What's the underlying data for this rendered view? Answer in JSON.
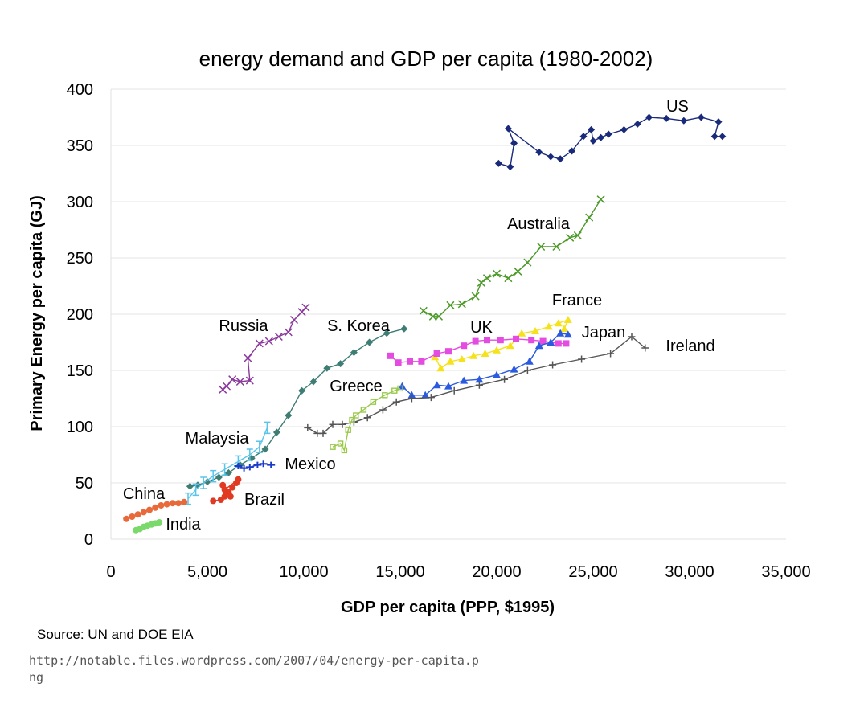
{
  "chart_data": {
    "type": "scatter",
    "title": "energy demand and GDP per capita (1980-2002)",
    "xlabel": "GDP per capita (PPP, $1995)",
    "ylabel": "Primary Energy per capita (GJ)",
    "xlim": [
      0,
      35000
    ],
    "ylim": [
      0,
      400
    ],
    "xticks": [
      "0",
      "5,000",
      "10,000",
      "15,000",
      "20,000",
      "25,000",
      "30,000",
      "35,000"
    ],
    "yticks": [
      "0",
      "50",
      "100",
      "150",
      "200",
      "250",
      "300",
      "350",
      "400"
    ],
    "grid": "horizontal",
    "legend": "none",
    "series": [
      {
        "name": "US",
        "color": "#1a2a7a",
        "marker": "diamond",
        "points": [
          [
            20100,
            334
          ],
          [
            20700,
            331
          ],
          [
            20900,
            352
          ],
          [
            20600,
            365
          ],
          [
            22200,
            344
          ],
          [
            22800,
            340
          ],
          [
            23300,
            338
          ],
          [
            23900,
            345
          ],
          [
            24500,
            358
          ],
          [
            24900,
            364
          ],
          [
            25000,
            354
          ],
          [
            25400,
            357
          ],
          [
            25800,
            360
          ],
          [
            26600,
            364
          ],
          [
            27300,
            369
          ],
          [
            27900,
            375
          ],
          [
            28800,
            374
          ],
          [
            29700,
            372
          ],
          [
            30600,
            375
          ],
          [
            31500,
            371
          ],
          [
            31300,
            358
          ],
          [
            31700,
            358
          ]
        ]
      },
      {
        "name": "Australia",
        "color": "#4d9a2a",
        "marker": "x",
        "points": [
          [
            16200,
            203
          ],
          [
            16700,
            198
          ],
          [
            17000,
            198
          ],
          [
            17600,
            208
          ],
          [
            18200,
            209
          ],
          [
            18900,
            216
          ],
          [
            19200,
            228
          ],
          [
            19500,
            232
          ],
          [
            20000,
            236
          ],
          [
            20600,
            232
          ],
          [
            21100,
            238
          ],
          [
            21600,
            246
          ],
          [
            22300,
            260
          ],
          [
            23100,
            260
          ],
          [
            23800,
            268
          ],
          [
            24200,
            270
          ],
          [
            24800,
            286
          ],
          [
            25400,
            302
          ]
        ]
      },
      {
        "name": "France",
        "color": "#f5e21a",
        "marker": "triangle",
        "points": [
          [
            16800,
            162
          ],
          [
            17100,
            152
          ],
          [
            17600,
            158
          ],
          [
            18200,
            160
          ],
          [
            18800,
            163
          ],
          [
            19400,
            165
          ],
          [
            20000,
            168
          ],
          [
            20700,
            172
          ],
          [
            21300,
            183
          ],
          [
            22000,
            185
          ],
          [
            22700,
            189
          ],
          [
            23200,
            192
          ],
          [
            23700,
            195
          ],
          [
            23500,
            187
          ]
        ]
      },
      {
        "name": "UK",
        "color": "#e44be0",
        "marker": "square",
        "points": [
          [
            14500,
            163
          ],
          [
            14900,
            157
          ],
          [
            15500,
            158
          ],
          [
            16100,
            158
          ],
          [
            16900,
            165
          ],
          [
            17500,
            167
          ],
          [
            18300,
            172
          ],
          [
            18900,
            176
          ],
          [
            19500,
            177
          ],
          [
            20200,
            177
          ],
          [
            21000,
            178
          ],
          [
            21800,
            177
          ],
          [
            22400,
            176
          ],
          [
            23200,
            174
          ],
          [
            23600,
            174
          ]
        ]
      },
      {
        "name": "Japan",
        "color": "#2a5ae0",
        "marker": "triangle",
        "points": [
          [
            15100,
            136
          ],
          [
            15600,
            128
          ],
          [
            16300,
            128
          ],
          [
            16900,
            137
          ],
          [
            17500,
            136
          ],
          [
            18300,
            141
          ],
          [
            19100,
            142
          ],
          [
            20000,
            146
          ],
          [
            20900,
            151
          ],
          [
            21700,
            158
          ],
          [
            22200,
            172
          ],
          [
            22800,
            175
          ],
          [
            23300,
            183
          ],
          [
            23700,
            182
          ]
        ]
      },
      {
        "name": "Ireland",
        "color": "#555555",
        "marker": "plus",
        "points": [
          [
            10200,
            99
          ],
          [
            10700,
            94
          ],
          [
            11000,
            94
          ],
          [
            11500,
            102
          ],
          [
            12000,
            102
          ],
          [
            12600,
            104
          ],
          [
            13300,
            108
          ],
          [
            14100,
            115
          ],
          [
            14800,
            122
          ],
          [
            15600,
            125
          ],
          [
            16600,
            126
          ],
          [
            17800,
            132
          ],
          [
            19100,
            137
          ],
          [
            20400,
            142
          ],
          [
            21600,
            150
          ],
          [
            22900,
            155
          ],
          [
            24400,
            160
          ],
          [
            25900,
            165
          ],
          [
            27000,
            180
          ],
          [
            27700,
            170
          ]
        ]
      },
      {
        "name": "Greece",
        "color": "#9ac94a",
        "marker": "open-square",
        "points": [
          [
            11500,
            82
          ],
          [
            11900,
            85
          ],
          [
            12100,
            79
          ],
          [
            12300,
            97
          ],
          [
            12500,
            106
          ],
          [
            12700,
            110
          ],
          [
            13100,
            115
          ],
          [
            13600,
            122
          ],
          [
            14200,
            128
          ],
          [
            14700,
            132
          ],
          [
            15000,
            134
          ]
        ]
      },
      {
        "name": "S. Korea",
        "color": "#3d7d74",
        "marker": "diamond",
        "points": [
          [
            4100,
            47
          ],
          [
            4500,
            48
          ],
          [
            5000,
            51
          ],
          [
            5600,
            55
          ],
          [
            6100,
            59
          ],
          [
            6700,
            66
          ],
          [
            7300,
            72
          ],
          [
            8000,
            80
          ],
          [
            8600,
            95
          ],
          [
            9200,
            110
          ],
          [
            9900,
            132
          ],
          [
            10500,
            140
          ],
          [
            11200,
            152
          ],
          [
            11900,
            156
          ],
          [
            12600,
            166
          ],
          [
            13400,
            175
          ],
          [
            14300,
            183
          ],
          [
            15200,
            187
          ]
        ]
      },
      {
        "name": "Russia",
        "color": "#8a3a9a",
        "marker": "x",
        "points": [
          [
            5800,
            133
          ],
          [
            6000,
            136
          ],
          [
            6300,
            142
          ],
          [
            6700,
            140
          ],
          [
            7200,
            141
          ],
          [
            7100,
            161
          ],
          [
            7700,
            174
          ],
          [
            8200,
            176
          ],
          [
            8700,
            180
          ],
          [
            9200,
            184
          ],
          [
            9500,
            195
          ],
          [
            9900,
            202
          ],
          [
            10100,
            206
          ]
        ]
      },
      {
        "name": "Malaysia",
        "color": "#5ac4ea",
        "marker": "i-beam",
        "points": [
          [
            4000,
            36
          ],
          [
            4400,
            44
          ],
          [
            4800,
            50
          ],
          [
            5300,
            56
          ],
          [
            5900,
            62
          ],
          [
            6600,
            69
          ],
          [
            7200,
            75
          ],
          [
            7700,
            82
          ],
          [
            8100,
            99
          ]
        ]
      },
      {
        "name": "Mexico",
        "color": "#1a3ac9",
        "marker": "dash",
        "points": [
          [
            6600,
            65
          ],
          [
            6900,
            63
          ],
          [
            7200,
            64
          ],
          [
            7600,
            66
          ],
          [
            7900,
            67
          ],
          [
            8300,
            66
          ]
        ]
      },
      {
        "name": "Brazil",
        "color": "#e03a22",
        "marker": "circle",
        "points": [
          [
            5300,
            34
          ],
          [
            5700,
            35
          ],
          [
            5900,
            38
          ],
          [
            6100,
            42
          ],
          [
            6300,
            46
          ],
          [
            6500,
            50
          ],
          [
            6600,
            53
          ],
          [
            5900,
            44
          ],
          [
            6200,
            38
          ],
          [
            5800,
            48
          ]
        ]
      },
      {
        "name": "China",
        "color": "#e86a3a",
        "marker": "circle",
        "points": [
          [
            800,
            18
          ],
          [
            1100,
            20
          ],
          [
            1400,
            22
          ],
          [
            1700,
            24
          ],
          [
            2000,
            26
          ],
          [
            2300,
            28
          ],
          [
            2600,
            30
          ],
          [
            2900,
            31
          ],
          [
            3200,
            32
          ],
          [
            3500,
            32
          ],
          [
            3800,
            33
          ]
        ]
      },
      {
        "name": "India",
        "color": "#7ad96a",
        "marker": "circle",
        "points": [
          [
            1300,
            8
          ],
          [
            1500,
            9
          ],
          [
            1700,
            11
          ],
          [
            1900,
            12
          ],
          [
            2100,
            13
          ],
          [
            2300,
            14
          ],
          [
            2500,
            15
          ]
        ]
      }
    ]
  },
  "source_text": "Source: UN and DOE EIA",
  "url_text": "http://notable.files.wordpress.com/2007/04/energy-per-capita.png"
}
